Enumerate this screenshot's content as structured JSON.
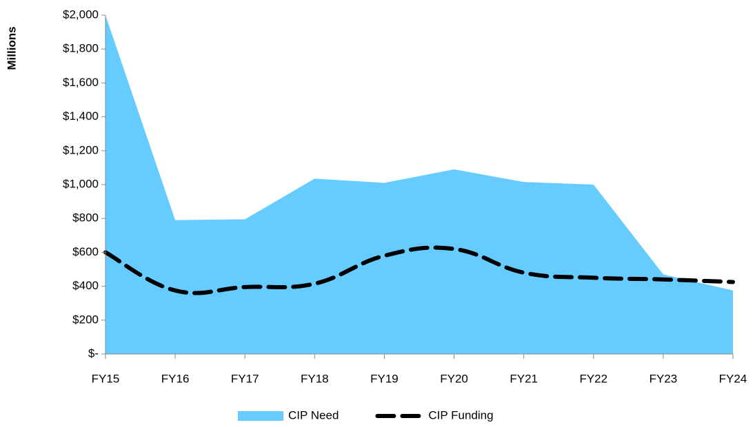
{
  "chart_data": {
    "type": "area",
    "y_axis_label": "Millions",
    "categories": [
      "FY15",
      "FY16",
      "FY17",
      "FY18",
      "FY19",
      "FY20",
      "FY21",
      "FY22",
      "FY23",
      "FY24"
    ],
    "series": [
      {
        "name": "CIP Need",
        "type": "area",
        "color": "#66ccff",
        "values": [
          2000,
          790,
          795,
          1035,
          1010,
          1090,
          1015,
          1000,
          470,
          375
        ]
      },
      {
        "name": "CIP Funding",
        "type": "line",
        "dashed": true,
        "smooth": true,
        "color": "#000000",
        "values": [
          600,
          375,
          395,
          415,
          580,
          620,
          480,
          450,
          440,
          425
        ]
      }
    ],
    "ylim": [
      0,
      2000
    ],
    "yticks": [
      {
        "value": 0,
        "label": "$-"
      },
      {
        "value": 200,
        "label": "$200"
      },
      {
        "value": 400,
        "label": "$400"
      },
      {
        "value": 600,
        "label": "$600"
      },
      {
        "value": 800,
        "label": "$800"
      },
      {
        "value": 1000,
        "label": "$1,000"
      },
      {
        "value": 1200,
        "label": "$1,200"
      },
      {
        "value": 1400,
        "label": "$1,400"
      },
      {
        "value": 1600,
        "label": "$1,600"
      },
      {
        "value": 1800,
        "label": "$1,800"
      },
      {
        "value": 2000,
        "label": "$2,000"
      }
    ],
    "legend": "bottom"
  }
}
